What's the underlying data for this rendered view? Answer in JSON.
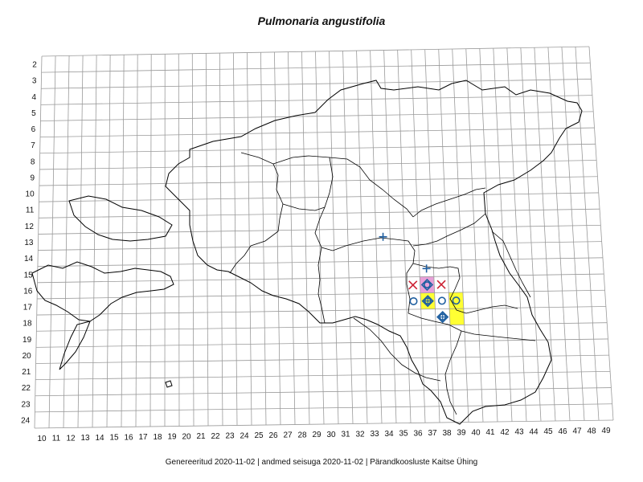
{
  "title": "Pulmonaria angustifolia",
  "footer": "Genereeritud 2020-11-02  |  andmed seisuga 2020-11-02  |  Pärandkoosluste Kaitse Ühing",
  "grid": {
    "col_labels": [
      "10",
      "11",
      "12",
      "13",
      "14",
      "15",
      "16",
      "17",
      "18",
      "19",
      "20",
      "21",
      "22",
      "23",
      "24",
      "25",
      "26",
      "27",
      "28",
      "29",
      "30",
      "31",
      "32",
      "33",
      "34",
      "35",
      "36",
      "37",
      "38",
      "39",
      "40",
      "41",
      "42",
      "43",
      "44",
      "45",
      "46",
      "47",
      "48",
      "49"
    ],
    "row_labels": [
      "2",
      "3",
      "4",
      "5",
      "6",
      "7",
      "8",
      "9",
      "10",
      "11",
      "12",
      "13",
      "14",
      "15",
      "16",
      "17",
      "18",
      "19",
      "20",
      "21",
      "22",
      "23",
      "24"
    ]
  },
  "highlighted_cells": [
    {
      "col": 37,
      "row": 16,
      "color": "#e8a0d8"
    },
    {
      "col": 37,
      "row": 17,
      "color": "#ffff33"
    },
    {
      "col": 39,
      "row": 17,
      "color": "#ffff33"
    },
    {
      "col": 39,
      "row": 18,
      "color": "#ffff33"
    }
  ],
  "markers": [
    {
      "col": 34,
      "row": 13,
      "symbol": "plus",
      "color": "#1f5fa0"
    },
    {
      "col": 37,
      "row": 15,
      "symbol": "plus",
      "color": "#1f5fa0"
    },
    {
      "col": 36,
      "row": 16,
      "symbol": "cross",
      "color": "#cc2233"
    },
    {
      "col": 37,
      "row": 16,
      "symbol": "diamond-circle",
      "color": "#1f5fa0"
    },
    {
      "col": 38,
      "row": 16,
      "symbol": "cross",
      "color": "#cc2233"
    },
    {
      "col": 36,
      "row": 17,
      "symbol": "circle",
      "color": "#1f5fa0"
    },
    {
      "col": 37,
      "row": 17,
      "symbol": "diamond-plus",
      "color": "#1f5fa0"
    },
    {
      "col": 38,
      "row": 17,
      "symbol": "circle",
      "color": "#1f5fa0"
    },
    {
      "col": 39,
      "row": 17,
      "symbol": "circle",
      "color": "#1f5fa0"
    },
    {
      "col": 38,
      "row": 18,
      "symbol": "diamond-plus",
      "color": "#1f5fa0"
    }
  ],
  "colors": {
    "grid": "#9a9a9a",
    "border": "#000000",
    "county": "#000000"
  }
}
